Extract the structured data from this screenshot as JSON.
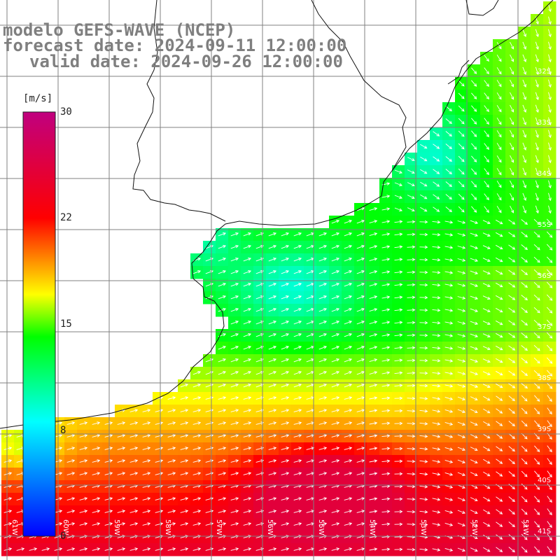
{
  "title": {
    "line1": "modelo GEFS-WAVE (NCEP)",
    "line2": "forecast date: 2024-09-11 12:00:00",
    "line3": "valid date: 2024-09-26 12:00:00"
  },
  "colorbar": {
    "unit": "[m/s]",
    "ticks": [
      "30",
      "22",
      "15",
      "8",
      "0"
    ],
    "tick_values": [
      30,
      22,
      15,
      8,
      0
    ],
    "colors": [
      "#0000ff",
      "#00ffff",
      "#00ff00",
      "#ffff00",
      "#ff0000",
      "#c0007f"
    ]
  },
  "map": {
    "lat_labels": [
      "32S",
      "33S",
      "34S",
      "35S",
      "36S",
      "37S",
      "38S",
      "39S",
      "40S",
      "41S"
    ],
    "lon_labels": [
      "61W",
      "60W",
      "59W",
      "58W",
      "57W",
      "56W",
      "55W",
      "54W",
      "53W",
      "52W",
      "51W"
    ],
    "land_color": "#ffffff",
    "grid_color": "#808080"
  }
}
